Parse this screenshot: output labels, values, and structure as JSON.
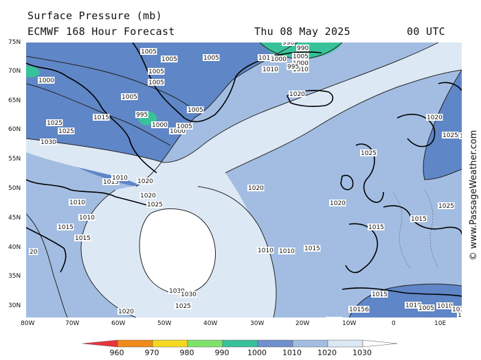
{
  "header": {
    "title": "Surface Pressure (mb)",
    "subtitle": "ECMWF 168 Hour Forecast",
    "valid_date": "Thu 08 May 2025",
    "valid_time": "00 UTC"
  },
  "axes": {
    "lat_labels": [
      "75N",
      "70N",
      "65N",
      "60N",
      "55N",
      "50N",
      "45N",
      "40N",
      "35N",
      "30N"
    ],
    "lon_labels": [
      "80W",
      "70W",
      "60W",
      "50W",
      "40W",
      "30W",
      "20W",
      "10W",
      "0",
      "10E"
    ]
  },
  "legend": {
    "levels": [
      "960",
      "970",
      "980",
      "990",
      "1000",
      "1010",
      "1020",
      "1030"
    ],
    "colors": [
      "#e8343a",
      "#f08a1a",
      "#f5d81f",
      "#7ee36a",
      "#38c29a",
      "#6e90cc",
      "#a3bde2",
      "#dde8f5"
    ]
  },
  "fill_colors": {
    "lt1000": "#38c29a",
    "1000_1010": "#5f86c6",
    "1010_1020": "#a3bde2",
    "1020_1030": "#dde8f5",
    "gt1030": "#ffffff"
  },
  "isobar_labels": [
    "1005",
    "1005",
    "1005",
    "1005",
    "1005",
    "1005",
    "1005",
    "1000",
    "1010",
    "1010",
    "1015",
    "1000",
    "995",
    "1005",
    "1010",
    "1020",
    "1025",
    "1030",
    "1025",
    "1015",
    "1020",
    "1020",
    "1025",
    "1010",
    "1010",
    "1015",
    "1015",
    "20",
    "1020",
    "1030",
    "1030",
    "1025",
    "1020",
    "1020",
    "1015",
    "1010",
    "1010",
    "990",
    "990",
    "1000",
    "1000",
    "995",
    "1000",
    "1010",
    "1005",
    "1020",
    "1025",
    "1025",
    "1025",
    "1025",
    "1015",
    "1015",
    "1015",
    "1016",
    "1010",
    "1005",
    "1015",
    "1015",
    "1010",
    "1015",
    "1010",
    "1010"
  ],
  "credit": "© www.PassageWeather.com"
}
